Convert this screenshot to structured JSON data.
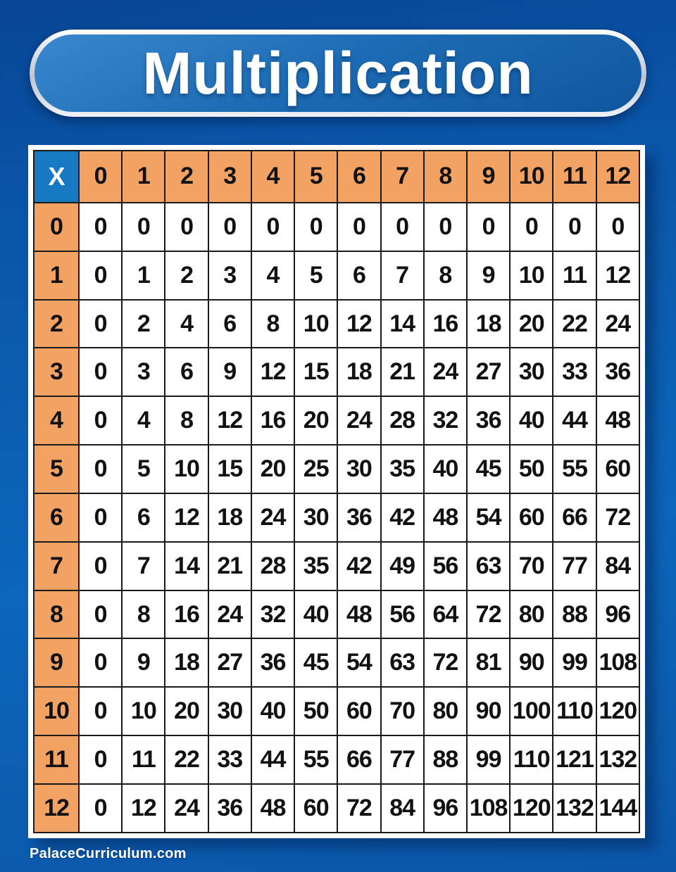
{
  "page": {
    "title": "Multiplication",
    "footer": "PalaceCurriculum.com"
  },
  "colors": {
    "background_top": "#084695",
    "background_mid": "#0C66BA",
    "background_bottom": "#0B56A9",
    "header_orange": "#F2A263",
    "corner_blue": "#1779C1",
    "cell_border": "#1A1A1A",
    "cell_background": "#FFFFFF",
    "number_text": "#111111",
    "light_text": "#FFFFFF"
  },
  "chart_data": {
    "type": "table",
    "title": "Multiplication",
    "corner_label": "X",
    "column_headers": [
      "0",
      "1",
      "2",
      "3",
      "4",
      "5",
      "6",
      "7",
      "8",
      "9",
      "10",
      "11",
      "12"
    ],
    "row_headers": [
      "0",
      "1",
      "2",
      "3",
      "4",
      "5",
      "6",
      "7",
      "8",
      "9",
      "10",
      "11",
      "12"
    ],
    "rows": [
      [
        0,
        0,
        0,
        0,
        0,
        0,
        0,
        0,
        0,
        0,
        0,
        0,
        0
      ],
      [
        0,
        1,
        2,
        3,
        4,
        5,
        6,
        7,
        8,
        9,
        10,
        11,
        12
      ],
      [
        0,
        2,
        4,
        6,
        8,
        10,
        12,
        14,
        16,
        18,
        20,
        22,
        24
      ],
      [
        0,
        3,
        6,
        9,
        12,
        15,
        18,
        21,
        24,
        27,
        30,
        33,
        36
      ],
      [
        0,
        4,
        8,
        12,
        16,
        20,
        24,
        28,
        32,
        36,
        40,
        44,
        48
      ],
      [
        0,
        5,
        10,
        15,
        20,
        25,
        30,
        35,
        40,
        45,
        50,
        55,
        60
      ],
      [
        0,
        6,
        12,
        18,
        24,
        30,
        36,
        42,
        48,
        54,
        60,
        66,
        72
      ],
      [
        0,
        7,
        14,
        21,
        28,
        35,
        42,
        49,
        56,
        63,
        70,
        77,
        84
      ],
      [
        0,
        8,
        16,
        24,
        32,
        40,
        48,
        56,
        64,
        72,
        80,
        88,
        96
      ],
      [
        0,
        9,
        18,
        27,
        36,
        45,
        54,
        63,
        72,
        81,
        90,
        99,
        108
      ],
      [
        0,
        10,
        20,
        30,
        40,
        50,
        60,
        70,
        80,
        90,
        100,
        110,
        120
      ],
      [
        0,
        11,
        22,
        33,
        44,
        55,
        66,
        77,
        88,
        99,
        110,
        121,
        132
      ],
      [
        0,
        12,
        24,
        36,
        48,
        60,
        72,
        84,
        96,
        108,
        120,
        132,
        144
      ]
    ]
  }
}
